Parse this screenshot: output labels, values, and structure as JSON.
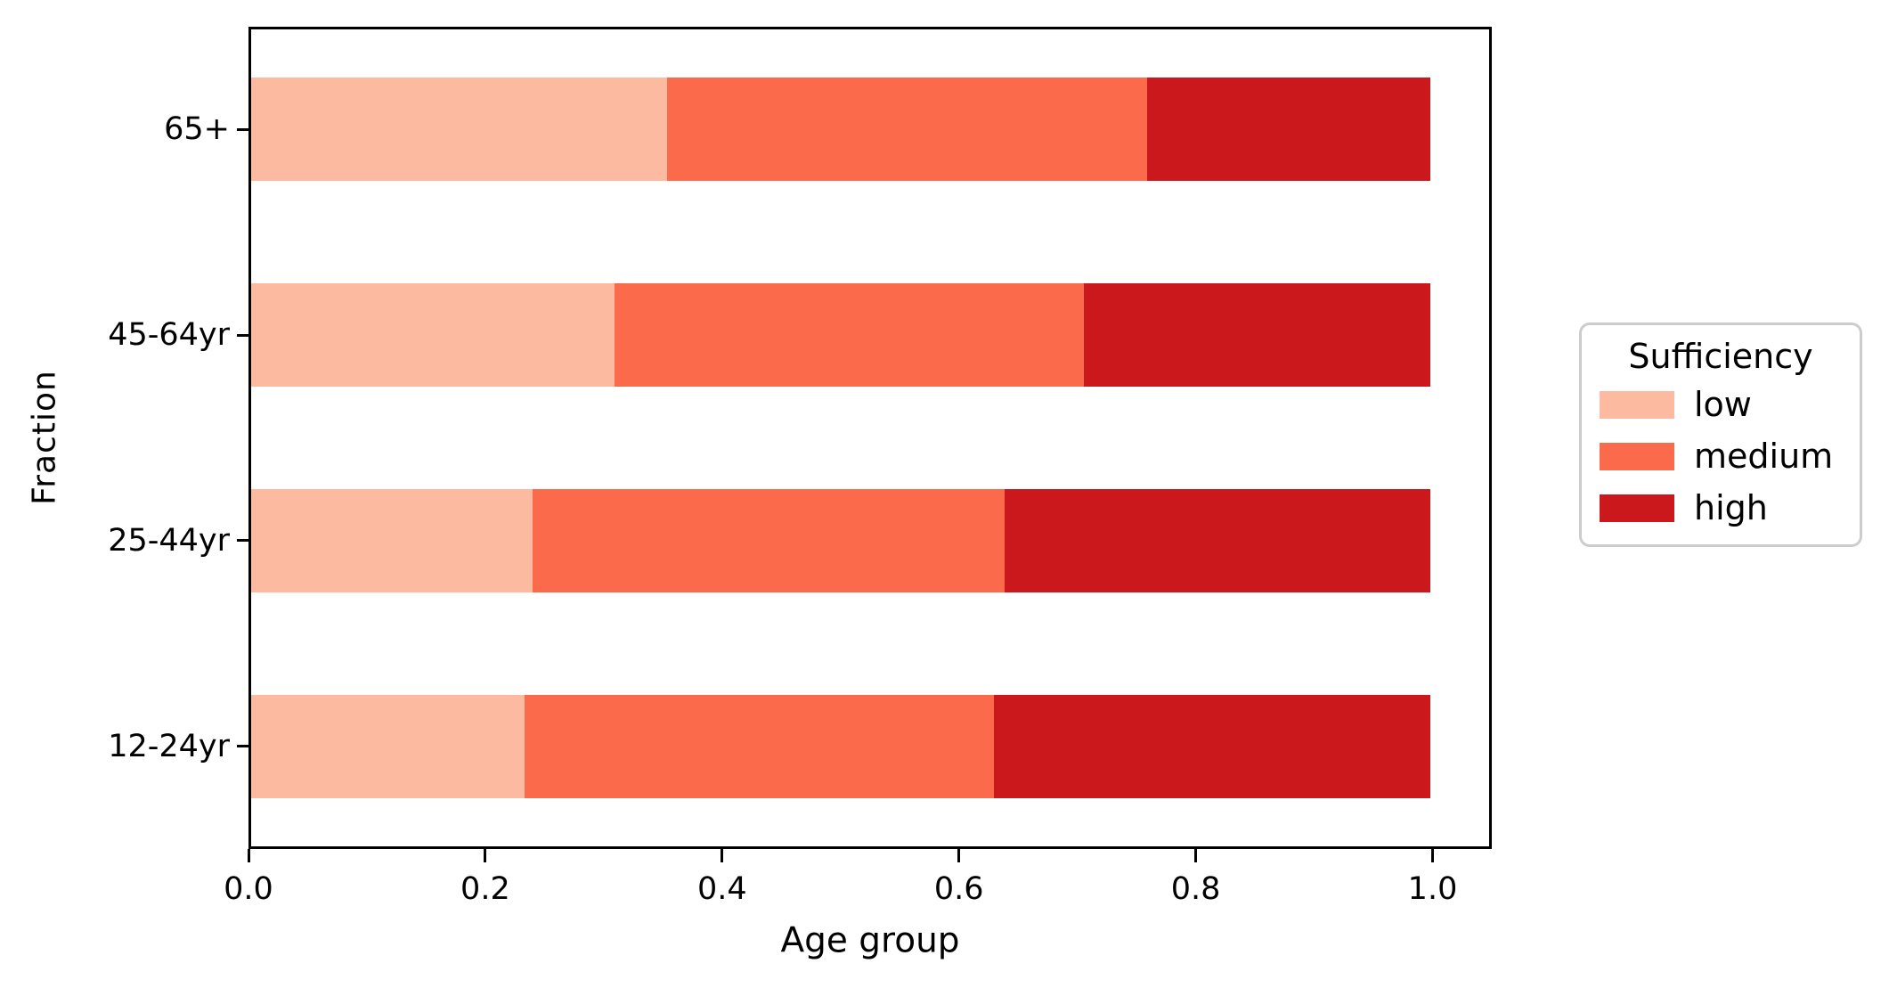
{
  "figure": {
    "background": "#ffffff",
    "text_color": "#000000",
    "spine_color": "#000000",
    "legend_border_color": "#cccccc"
  },
  "legend": {
    "title": "Sufficiency",
    "entries": [
      {
        "label": "low",
        "color": "#fcbba1"
      },
      {
        "label": "medium",
        "color": "#fb6a4a"
      },
      {
        "label": "high",
        "color": "#cb181d"
      }
    ]
  },
  "chart_data": {
    "type": "bar",
    "orientation": "horizontal",
    "stacked": true,
    "title": "",
    "xlabel": "Age group",
    "ylabel": "Fraction",
    "categories": [
      "65+",
      "45-64yr",
      "25-44yr",
      "12-24yr"
    ],
    "series": [
      {
        "name": "low",
        "color": "#fcbba1",
        "values": [
          0.353,
          0.308,
          0.239,
          0.232
        ]
      },
      {
        "name": "medium",
        "color": "#fb6a4a",
        "values": [
          0.407,
          0.398,
          0.4,
          0.398
        ]
      },
      {
        "name": "high",
        "color": "#cb181d",
        "values": [
          0.24,
          0.294,
          0.361,
          0.37
        ]
      }
    ],
    "xlim": [
      0,
      1.05
    ],
    "x_tick_values": [
      0.0,
      0.2,
      0.4,
      0.6,
      0.8,
      1.0
    ],
    "x_tick_labels": [
      "0.0",
      "0.2",
      "0.4",
      "0.6",
      "0.8",
      "1.0"
    ],
    "grid": false,
    "legend_title": "Sufficiency",
    "legend_position": "outside-right",
    "bar_height_fraction": 0.5
  }
}
